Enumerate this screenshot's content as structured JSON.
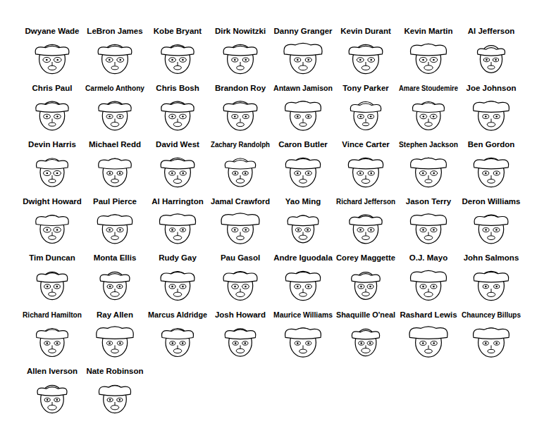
{
  "chart_data": {
    "type": "faces",
    "categories": [
      "Dwyane Wade",
      "LeBron James",
      "Kobe Bryant",
      "Dirk Nowitzki",
      "Danny Granger",
      "Kevin Durant",
      "Kevin Martin",
      "Al Jefferson",
      "Chris Paul",
      "Carmelo Anthony",
      "Chris Bosh",
      "Brandon Roy",
      "Antawn Jamison",
      "Tony Parker",
      "Amare Stoudemire",
      "Joe Johnson",
      "Devin Harris",
      "Michael Redd",
      "David West",
      "Zachary Randolph",
      "Caron Butler",
      "Vince Carter",
      "Stephen Jackson",
      "Ben Gordon",
      "Dwight Howard",
      "Paul Pierce",
      "Al Harrington",
      "Jamal Crawford",
      "Yao Ming",
      "Richard Jefferson",
      "Jason Terry",
      "Deron Williams",
      "Tim Duncan",
      "Monta Ellis",
      "Rudy Gay",
      "Pau Gasol",
      "Andre Iguodala",
      "Corey Maggette",
      "O.J. Mayo",
      "John Salmons",
      "Richard Hamilton",
      "Ray Allen",
      "Marcus Aldridge",
      "Josh Howard",
      "Maurice Williams",
      "Shaquille O'neal",
      "Rashard Lewis",
      "Chauncey Billups",
      "Allen Iverson",
      "Nate Robinson"
    ],
    "values": [
      [
        0.6,
        0.5,
        0.7,
        0.3
      ],
      [
        0.6,
        0.5,
        0.6,
        0.5
      ],
      [
        0.55,
        0.5,
        0.6,
        0.4
      ],
      [
        0.6,
        0.5,
        0.5,
        0.4
      ],
      [
        0.6,
        0.9,
        0.5,
        0.2
      ],
      [
        0.6,
        0.5,
        0.6,
        0.3
      ],
      [
        0.55,
        0.8,
        0.7,
        0.2
      ],
      [
        0.4,
        0.3,
        0.4,
        0.5
      ],
      [
        0.55,
        0.5,
        0.6,
        0.5
      ],
      [
        0.55,
        0.5,
        0.5,
        0.3
      ],
      [
        0.55,
        0.5,
        0.6,
        0.3
      ],
      [
        0.6,
        0.5,
        0.5,
        0.4
      ],
      [
        0.6,
        0.7,
        0.4,
        0.5
      ],
      [
        0.5,
        0.4,
        0.5,
        0.6
      ],
      [
        0.5,
        0.5,
        0.6,
        0.4
      ],
      [
        0.6,
        0.7,
        0.5,
        0.3
      ],
      [
        0.5,
        0.5,
        0.7,
        0.5
      ],
      [
        0.5,
        0.6,
        0.4,
        0.4
      ],
      [
        0.6,
        0.5,
        0.5,
        0.3
      ],
      [
        0.5,
        0.4,
        0.4,
        0.3
      ],
      [
        0.6,
        0.6,
        0.5,
        0.4
      ],
      [
        0.6,
        0.6,
        0.5,
        0.3
      ],
      [
        0.6,
        0.7,
        0.6,
        0.5
      ],
      [
        0.6,
        0.6,
        0.5,
        0.4
      ],
      [
        0.5,
        0.6,
        0.7,
        0.4
      ],
      [
        0.55,
        0.7,
        0.5,
        0.4
      ],
      [
        0.55,
        0.8,
        0.4,
        0.3
      ],
      [
        0.6,
        0.9,
        0.5,
        0.4
      ],
      [
        0.4,
        0.6,
        0.4,
        0.3
      ],
      [
        0.55,
        0.5,
        0.5,
        0.4
      ],
      [
        0.55,
        0.8,
        0.5,
        0.3
      ],
      [
        0.55,
        0.6,
        0.5,
        0.4
      ],
      [
        0.45,
        0.5,
        0.5,
        0.4
      ],
      [
        0.45,
        0.4,
        0.4,
        0.2
      ],
      [
        0.55,
        0.6,
        0.5,
        0.3
      ],
      [
        0.55,
        0.6,
        0.6,
        0.2
      ],
      [
        0.6,
        0.6,
        0.5,
        0.4
      ],
      [
        0.4,
        0.4,
        0.5,
        0.4
      ],
      [
        0.55,
        0.8,
        0.5,
        0.2
      ],
      [
        0.6,
        0.6,
        0.4,
        0.3
      ],
      [
        0.5,
        0.5,
        0.4,
        0.4
      ],
      [
        0.55,
        0.9,
        0.4,
        0.4
      ],
      [
        0.5,
        0.5,
        0.4,
        0.3
      ],
      [
        0.45,
        0.5,
        0.4,
        0.3
      ],
      [
        0.6,
        0.7,
        0.4,
        0.4
      ],
      [
        0.35,
        0.4,
        0.4,
        0.2
      ],
      [
        0.6,
        0.9,
        0.5,
        0.4
      ],
      [
        0.6,
        0.7,
        0.4,
        0.5
      ],
      [
        0.45,
        0.4,
        0.4,
        0.2
      ],
      [
        0.45,
        0.6,
        0.4,
        0.3
      ]
    ]
  }
}
